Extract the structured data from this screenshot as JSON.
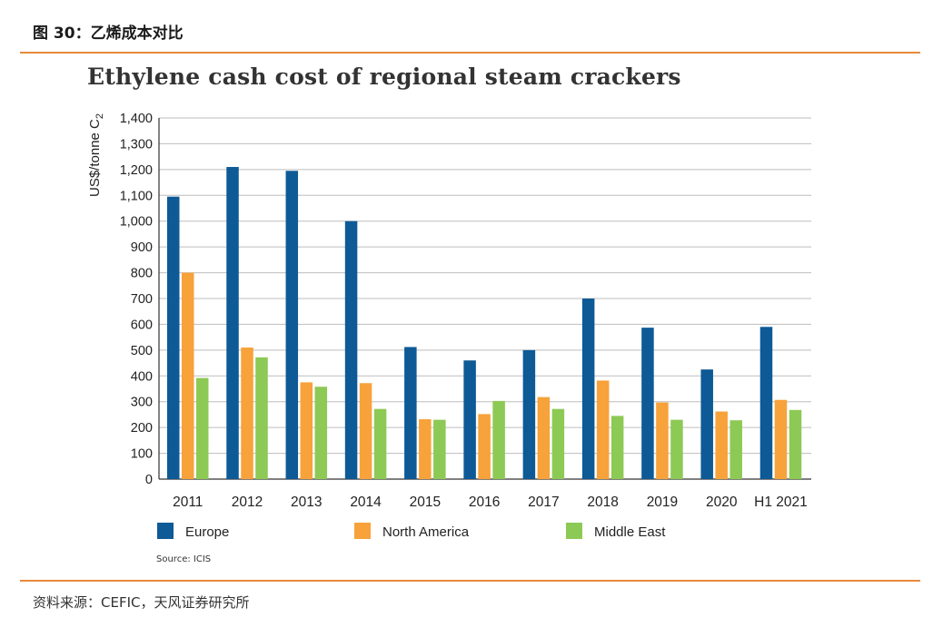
{
  "figure_label": "图 30：乙烯成本对比",
  "footer_source": "资料来源：CEFIC，天风证券研究所",
  "chart_data": {
    "type": "bar",
    "title": "Ethylene cash cost of regional steam crackers",
    "ylabel": "US$/tonne C2",
    "xlabel": "",
    "ylim": [
      0,
      1400
    ],
    "ytick_step": 100,
    "yticks": [
      "0",
      "100",
      "200",
      "300",
      "400",
      "500",
      "600",
      "700",
      "800",
      "900",
      "1,000",
      "1,100",
      "1,200",
      "1,300",
      "1,400"
    ],
    "categories": [
      "2011",
      "2012",
      "2013",
      "2014",
      "2015",
      "2016",
      "2017",
      "2018",
      "2019",
      "2020",
      "H1 2021"
    ],
    "series": [
      {
        "name": "Europe",
        "color": "#0d5a96",
        "values": [
          1095,
          1210,
          1195,
          1000,
          512,
          460,
          500,
          700,
          587,
          425,
          590
        ]
      },
      {
        "name": "North America",
        "color": "#f7a23a",
        "values": [
          800,
          510,
          375,
          372,
          232,
          252,
          318,
          382,
          297,
          262,
          307
        ]
      },
      {
        "name": "Middle East",
        "color": "#8dc955",
        "values": [
          392,
          472,
          358,
          272,
          230,
          303,
          272,
          245,
          230,
          228,
          268
        ]
      }
    ],
    "grid": true,
    "legend": "bottom",
    "source_note": "Source: ICIS"
  }
}
